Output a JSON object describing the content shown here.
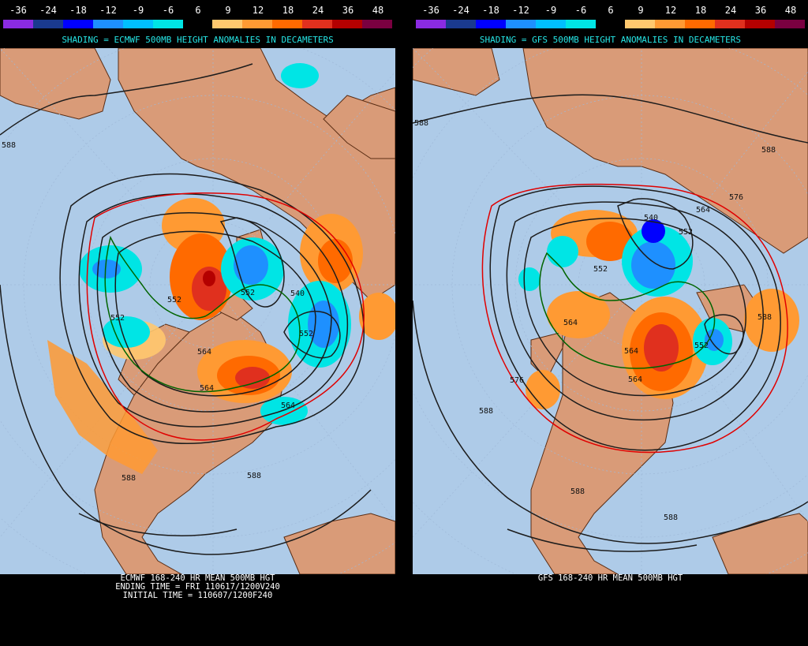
{
  "scale": {
    "labels": [
      "-36",
      "-24",
      "-18",
      "-12",
      "-9",
      "-6",
      "6",
      "9",
      "12",
      "18",
      "24",
      "36",
      "48"
    ],
    "colors": [
      "#8a2be2",
      "#1a3a8f",
      "#0000ff",
      "#1e90ff",
      "#00bfff",
      "#00e5e5",
      "#000000",
      "#ffc86e",
      "#ff9a33",
      "#ff6a00",
      "#e0301e",
      "#b40000",
      "#7a0040"
    ]
  },
  "colors": {
    "ocean": "#aecbe8",
    "land": "#d99b78",
    "coast": "#5a2d14",
    "contour": "#1c1c1c",
    "contour_576": "#e00000",
    "contour_552": "#006400",
    "title_cyan": "#26e6e6"
  },
  "left": {
    "shading_title": "SHADING = ECMWF 500MB HEIGHT ANOMALIES IN DECAMETERS",
    "caption_line1": "ECMWF 168-240 HR MEAN 500MB HGT",
    "caption_line2": "ENDING TIME = FRI 110617/1200V240",
    "caption_line3": "INITIAL TIME = 110607/1200F240",
    "contour_labels": [
      "588",
      "552",
      "552",
      "552",
      "540",
      "552",
      "564",
      "564",
      "564",
      "588",
      "588"
    ]
  },
  "right": {
    "shading_title": "SHADING = GFS 500MB HEIGHT ANOMALIES IN DECAMETERS",
    "caption_line1": "GFS 168-240 HR MEAN 500MB HGT",
    "contour_labels": [
      "588",
      "588",
      "576",
      "564",
      "540",
      "552",
      "552",
      "564",
      "564",
      "564",
      "588",
      "576",
      "588",
      "588",
      "588",
      "552"
    ]
  }
}
